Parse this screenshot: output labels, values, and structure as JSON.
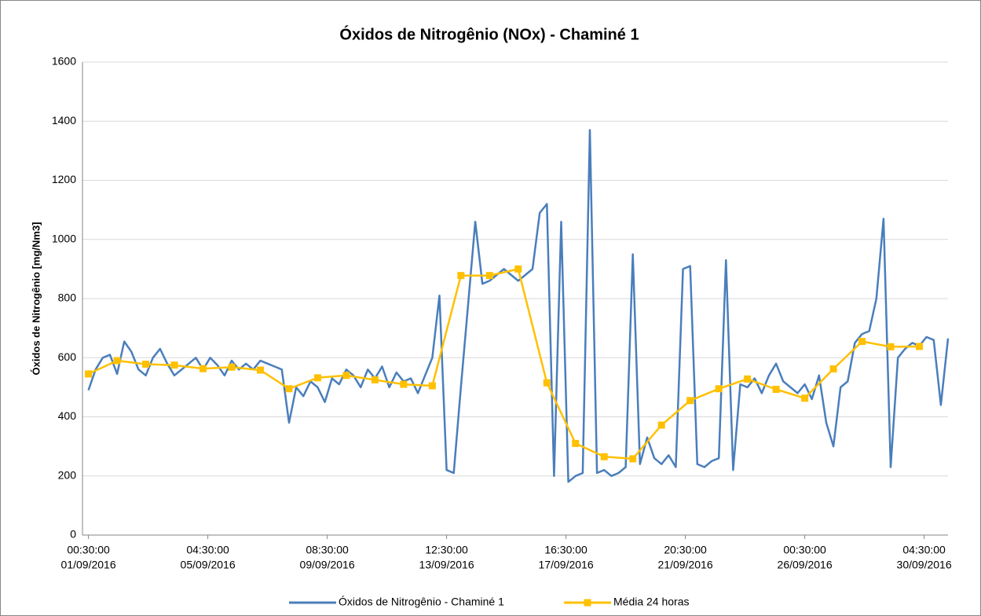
{
  "chart_data": {
    "type": "line",
    "title": "Óxidos de Nitrogênio (NOx) - Chaminé 1",
    "ylabel": "Óxidos de Nitrogênio [mg/Nm3]",
    "xlim": [
      "2016-08-31T19:30",
      "2016-10-01T00:30"
    ],
    "xticks": [
      {
        "value": "2016-09-01T00:30",
        "label": [
          "00:30:00",
          "01/09/2016"
        ]
      },
      {
        "value": "2016-09-05T04:30",
        "label": [
          "04:30:00",
          "05/09/2016"
        ]
      },
      {
        "value": "2016-09-09T08:30",
        "label": [
          "08:30:00",
          "09/09/2016"
        ]
      },
      {
        "value": "2016-09-13T12:30",
        "label": [
          "12:30:00",
          "13/09/2016"
        ]
      },
      {
        "value": "2016-09-17T16:30",
        "label": [
          "16:30:00",
          "17/09/2016"
        ]
      },
      {
        "value": "2016-09-21T20:30",
        "label": [
          "20:30:00",
          "21/09/2016"
        ]
      },
      {
        "value": "2016-09-26T00:30",
        "label": [
          "00:30:00",
          "26/09/2016"
        ]
      },
      {
        "value": "2016-09-30T04:30",
        "label": [
          "04:30:00",
          "30/09/2016"
        ]
      }
    ],
    "ylim": [
      0,
      1600
    ],
    "yticks": [
      0,
      200,
      400,
      600,
      800,
      1000,
      1200,
      1400,
      1600
    ],
    "grid": true,
    "legend": "bottom",
    "series": [
      {
        "name": "Óxidos de Nitrogênio - Chaminé 1",
        "color": "#4a7ebb",
        "marker": false,
        "x": [
          "2016-09-01T00:30",
          "2016-09-01T06:30",
          "2016-09-01T12:30",
          "2016-09-01T18:30",
          "2016-09-02T00:30",
          "2016-09-02T06:30",
          "2016-09-02T12:30",
          "2016-09-02T18:30",
          "2016-09-03T00:30",
          "2016-09-03T06:30",
          "2016-09-03T12:30",
          "2016-09-03T18:30",
          "2016-09-04T00:30",
          "2016-09-04T06:30",
          "2016-09-04T12:30",
          "2016-09-04T18:30",
          "2016-09-05T00:30",
          "2016-09-05T06:30",
          "2016-09-05T12:30",
          "2016-09-05T18:30",
          "2016-09-06T00:30",
          "2016-09-06T06:30",
          "2016-09-06T12:30",
          "2016-09-06T18:30",
          "2016-09-07T00:30",
          "2016-09-07T06:30",
          "2016-09-07T12:30",
          "2016-09-07T18:30",
          "2016-09-08T00:30",
          "2016-09-08T06:30",
          "2016-09-08T12:30",
          "2016-09-08T18:30",
          "2016-09-09T00:30",
          "2016-09-09T06:30",
          "2016-09-09T12:30",
          "2016-09-09T18:30",
          "2016-09-10T00:30",
          "2016-09-10T06:30",
          "2016-09-10T12:30",
          "2016-09-10T18:30",
          "2016-09-11T00:30",
          "2016-09-11T06:30",
          "2016-09-11T12:30",
          "2016-09-11T18:30",
          "2016-09-12T00:30",
          "2016-09-12T06:30",
          "2016-09-12T12:30",
          "2016-09-12T18:30",
          "2016-09-13T00:30",
          "2016-09-13T06:30",
          "2016-09-13T12:30",
          "2016-09-13T18:30",
          "2016-09-14T00:30",
          "2016-09-14T06:30",
          "2016-09-14T12:30",
          "2016-09-14T18:30",
          "2016-09-15T00:30",
          "2016-09-15T06:30",
          "2016-09-15T12:30",
          "2016-09-15T18:30",
          "2016-09-16T00:30",
          "2016-09-16T06:30",
          "2016-09-16T12:30",
          "2016-09-16T18:30",
          "2016-09-17T00:30",
          "2016-09-17T06:30",
          "2016-09-17T12:30",
          "2016-09-17T18:30",
          "2016-09-18T00:30",
          "2016-09-18T06:30",
          "2016-09-18T12:30",
          "2016-09-18T18:30",
          "2016-09-19T00:30",
          "2016-09-19T06:30",
          "2016-09-19T12:30",
          "2016-09-19T18:30",
          "2016-09-20T00:30",
          "2016-09-20T06:30",
          "2016-09-20T12:30",
          "2016-09-20T18:30",
          "2016-09-21T00:30",
          "2016-09-21T06:30",
          "2016-09-21T12:30",
          "2016-09-21T18:30",
          "2016-09-22T00:30",
          "2016-09-22T06:30",
          "2016-09-22T12:30",
          "2016-09-22T18:30",
          "2016-09-23T00:30",
          "2016-09-23T06:30",
          "2016-09-23T12:30",
          "2016-09-23T18:30",
          "2016-09-24T00:30",
          "2016-09-24T06:30",
          "2016-09-24T12:30",
          "2016-09-24T18:30",
          "2016-09-25T00:30",
          "2016-09-25T06:30",
          "2016-09-25T12:30",
          "2016-09-25T18:30",
          "2016-09-26T00:30",
          "2016-09-26T06:30",
          "2016-09-26T12:30",
          "2016-09-26T18:30",
          "2016-09-27T00:30",
          "2016-09-27T06:30",
          "2016-09-27T12:30",
          "2016-09-27T18:30",
          "2016-09-28T00:30",
          "2016-09-28T06:30",
          "2016-09-28T12:30",
          "2016-09-28T18:30",
          "2016-09-29T00:30",
          "2016-09-29T06:30",
          "2016-09-29T12:30",
          "2016-09-29T18:30",
          "2016-09-30T00:30",
          "2016-09-30T06:30",
          "2016-09-30T12:30",
          "2016-09-30T18:30",
          "2016-10-01T00:30"
        ],
        "values": [
          490,
          560,
          600,
          610,
          545,
          655,
          620,
          560,
          540,
          600,
          630,
          580,
          540,
          560,
          580,
          600,
          560,
          600,
          575,
          540,
          590,
          560,
          580,
          560,
          590,
          580,
          570,
          560,
          380,
          500,
          470,
          520,
          500,
          450,
          530,
          510,
          560,
          540,
          500,
          560,
          530,
          570,
          500,
          550,
          520,
          530,
          480,
          540,
          600,
          810,
          220,
          210,
          500,
          780,
          1060,
          850,
          860,
          880,
          900,
          880,
          860,
          880,
          900,
          1090,
          1120,
          200,
          1060,
          180,
          200,
          210,
          1370,
          210,
          220,
          200,
          210,
          230,
          950,
          240,
          330,
          260,
          240,
          270,
          230,
          900,
          910,
          240,
          230,
          250,
          260,
          930,
          220,
          510,
          500,
          530,
          480,
          540,
          580,
          520,
          500,
          480,
          510,
          460,
          540,
          380,
          300,
          500,
          520,
          650,
          680,
          690,
          800,
          1070,
          230,
          600,
          630,
          650,
          640,
          670,
          660,
          440,
          665
        ]
      },
      {
        "name": "Média 24 horas",
        "color": "#ffc000",
        "marker": true,
        "x": [
          "2016-09-01T00:30",
          "2016-09-02T00:30",
          "2016-09-03T00:30",
          "2016-09-04T00:30",
          "2016-09-05T00:30",
          "2016-09-06T00:30",
          "2016-09-07T00:30",
          "2016-09-08T00:30",
          "2016-09-09T00:30",
          "2016-09-10T00:30",
          "2016-09-11T00:30",
          "2016-09-12T00:30",
          "2016-09-13T00:30",
          "2016-09-14T00:30",
          "2016-09-15T00:30",
          "2016-09-16T00:30",
          "2016-09-17T00:30",
          "2016-09-18T00:30",
          "2016-09-19T00:30",
          "2016-09-20T00:30",
          "2016-09-21T00:30",
          "2016-09-22T00:30",
          "2016-09-23T00:30",
          "2016-09-24T00:30",
          "2016-09-25T00:30",
          "2016-09-26T00:30",
          "2016-09-27T00:30",
          "2016-09-28T00:30",
          "2016-09-29T00:30",
          "2016-09-30T00:30"
        ],
        "values": [
          545,
          590,
          578,
          575,
          563,
          568,
          558,
          495,
          532,
          540,
          525,
          510,
          505,
          878,
          878,
          900,
          515,
          310,
          265,
          258,
          372,
          455,
          495,
          528,
          493,
          463,
          562,
          655,
          637,
          638
        ]
      }
    ]
  }
}
